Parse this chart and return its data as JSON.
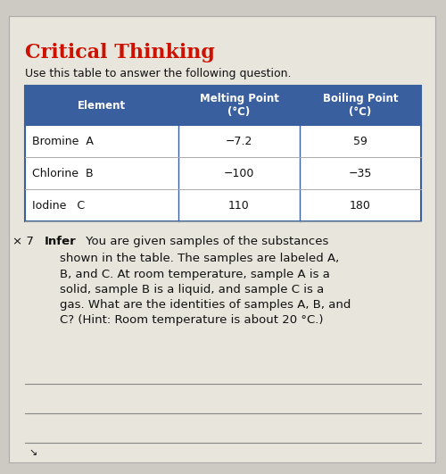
{
  "title": "Critical Thinking",
  "subtitle": "Use this table to answer the following question.",
  "header_bg": "#3A5F9F",
  "header_text_color": "#FFFFFF",
  "row_bg": "#FFFFFF",
  "border_color": "#3A5F9F",
  "col_headers": [
    "Element",
    "Melting Point\n(°C)",
    "Boiling Point\n(°C)"
  ],
  "rows": [
    [
      "Bromine  A",
      "−7.2",
      "59"
    ],
    [
      "Chlorine  B",
      "−100",
      "−35"
    ],
    [
      "Iodine   C",
      "110",
      "180"
    ]
  ],
  "question_number": "× 7",
  "question_bold": "Infer",
  "question_body": "You are given samples of the substances\n    shown in the table. The samples are labeled A,\n    B, and C. At room temperature, sample A is a\n    solid, sample B is a liquid, and sample C is a\n    gas. What are the identities of samples A, B, and\n    C? (Hint: Room temperature is about 20 °C.)",
  "bg_color": "#CCCAC3",
  "card_color": "#E8E5DC",
  "line_color": "#888888",
  "title_color": "#CC1100",
  "text_color": "#111111",
  "figsize": [
    5.0,
    5.31
  ],
  "dpi": 100
}
